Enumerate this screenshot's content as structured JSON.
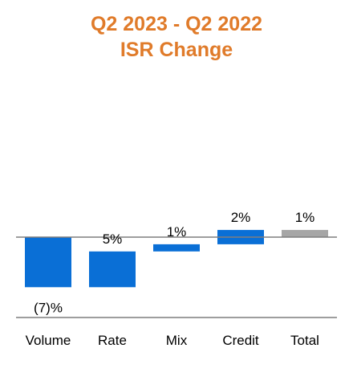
{
  "chart_data": {
    "type": "waterfall",
    "title": "Q2 2023 - Q2 2022",
    "subtitle": "ISR Change",
    "categories": [
      "Volume",
      "Rate",
      "Mix",
      "Credit",
      "Total"
    ],
    "values": [
      -7,
      5,
      1,
      2,
      1
    ],
    "data_labels": [
      "(7)%",
      "5%",
      "1%",
      "2%",
      "1%"
    ],
    "start": [
      0,
      -7,
      -2,
      -1,
      0
    ],
    "end": [
      -7,
      -2,
      -1,
      1,
      1
    ],
    "is_total": [
      false,
      false,
      false,
      false,
      true
    ],
    "unit": "%",
    "grid": false,
    "legend": "none"
  },
  "colors": {
    "title": "#E07B2A",
    "bar": "#0A6FD6",
    "total": "#A6A6A6",
    "axis": "#7F7F7F"
  }
}
